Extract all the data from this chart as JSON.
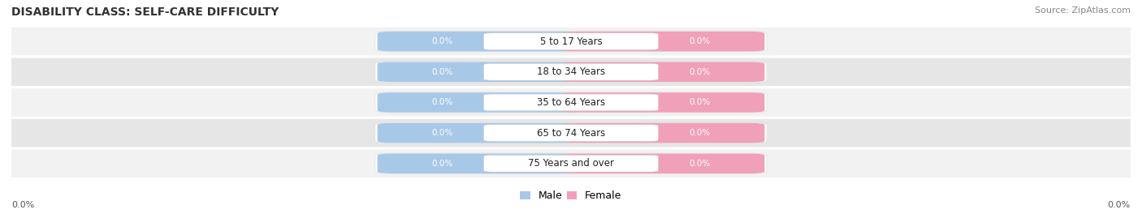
{
  "title": "DISABILITY CLASS: SELF-CARE DIFFICULTY",
  "source": "Source: ZipAtlas.com",
  "categories": [
    "5 to 17 Years",
    "18 to 34 Years",
    "35 to 64 Years",
    "65 to 74 Years",
    "75 Years and over"
  ],
  "male_values": [
    0.0,
    0.0,
    0.0,
    0.0,
    0.0
  ],
  "female_values": [
    0.0,
    0.0,
    0.0,
    0.0,
    0.0
  ],
  "male_color": "#a8c8e8",
  "female_color": "#f0a0b8",
  "male_label": "Male",
  "female_label": "Female",
  "row_light_color": "#f2f2f2",
  "row_dark_color": "#e6e6e6",
  "pill_bg_light": "#f8f8f8",
  "pill_bg_dark": "#eeeeee",
  "axis_label_left": "0.0%",
  "axis_label_right": "0.0%",
  "title_fontsize": 10,
  "cat_fontsize": 8.5,
  "val_fontsize": 7.5,
  "source_fontsize": 8,
  "background_color": "#ffffff"
}
